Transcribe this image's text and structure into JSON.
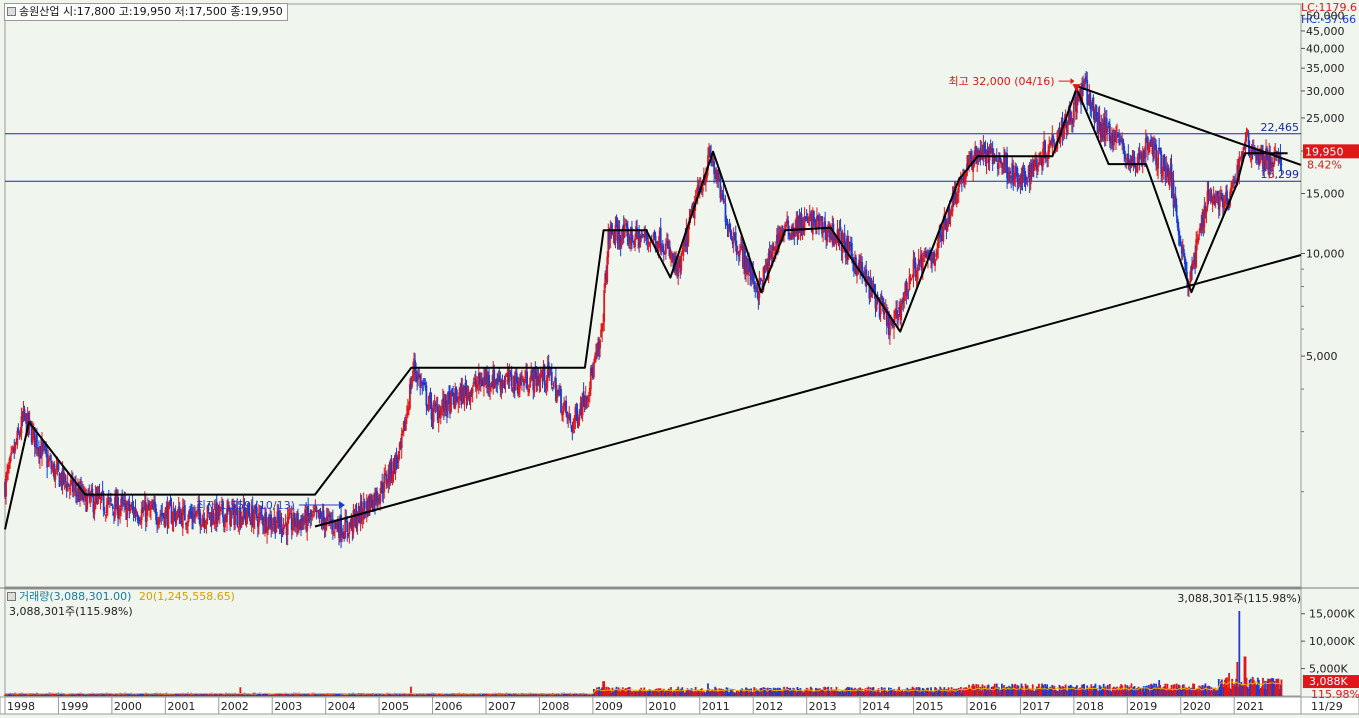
{
  "header": {
    "name": "송원산업",
    "text": "송원산업 시:17,800 고:19,950 저:17,500 종:19,950"
  },
  "lc_label": "LC:1179.6",
  "hc_label": "HC:-37.66",
  "colors": {
    "background": "#f0f6ee",
    "up": "#e0161a",
    "down": "#1a3cd0",
    "trendline": "#000000",
    "hline": "#1a2a9a",
    "ma20": "#e8b400",
    "current_tag": "#e0161a"
  },
  "chart_data": [
    {
      "type": "candlestick",
      "y_scale": "log",
      "ylim": [
        1050,
        54000
      ],
      "y_ticks": [
        5000,
        10000,
        15000,
        20000,
        25000,
        30000,
        35000,
        40000,
        45000,
        50000
      ],
      "y_tick_labels": [
        "5,000",
        "10,000",
        "15,000",
        "20,000",
        "25,000",
        "30,000",
        "35,000",
        "40,000",
        "45,000",
        "50,000"
      ],
      "x_start": 1998.0,
      "x_end": 2022.25,
      "x_ticks": [
        1998,
        1999,
        2000,
        2001,
        2002,
        2003,
        2004,
        2005,
        2006,
        2007,
        2008,
        2009,
        2010,
        2011,
        2012,
        2013,
        2014,
        2015,
        2016,
        2017,
        2018,
        2019,
        2020,
        2021
      ],
      "x_tick_labels": [
        "1998",
        "1999",
        "2000",
        "2001",
        "2002",
        "2003",
        "2004",
        "2005",
        "2006",
        "2007",
        "2008",
        "2009",
        "2010",
        "2011",
        "2012",
        "2013",
        "2014",
        "2015",
        "2016",
        "2017",
        "2018",
        "2019",
        "2020",
        "2021"
      ],
      "last_tick_label": "11/29",
      "price_path": [
        [
          1998.0,
          2100
        ],
        [
          1998.35,
          3300
        ],
        [
          1998.9,
          2300
        ],
        [
          1999.5,
          1900
        ],
        [
          2000.5,
          1750
        ],
        [
          2001.5,
          1700
        ],
        [
          2002.5,
          1720
        ],
        [
          2003.3,
          1600
        ],
        [
          2003.8,
          1680
        ],
        [
          2004.4,
          1560
        ],
        [
          2005.0,
          2000
        ],
        [
          2005.4,
          2600
        ],
        [
          2005.65,
          4700
        ],
        [
          2006.0,
          3400
        ],
        [
          2006.6,
          3900
        ],
        [
          2007.0,
          4300
        ],
        [
          2007.6,
          4200
        ],
        [
          2008.2,
          4400
        ],
        [
          2008.6,
          3100
        ],
        [
          2008.9,
          4000
        ],
        [
          2009.15,
          5500
        ],
        [
          2009.3,
          11500
        ],
        [
          2009.7,
          11200
        ],
        [
          2010.3,
          11000
        ],
        [
          2010.6,
          8700
        ],
        [
          2010.85,
          13000
        ],
        [
          2011.2,
          19500
        ],
        [
          2011.55,
          12000
        ],
        [
          2012.1,
          7800
        ],
        [
          2012.5,
          11500
        ],
        [
          2013.1,
          12500
        ],
        [
          2013.6,
          11200
        ],
        [
          2014.0,
          9000
        ],
        [
          2014.6,
          6000
        ],
        [
          2015.0,
          9000
        ],
        [
          2015.4,
          10000
        ],
        [
          2015.8,
          15500
        ],
        [
          2016.2,
          20000
        ],
        [
          2016.7,
          18500
        ],
        [
          2017.0,
          16000
        ],
        [
          2017.5,
          20500
        ],
        [
          2018.0,
          26500
        ],
        [
          2018.2,
          31000
        ],
        [
          2018.45,
          24000
        ],
        [
          2018.8,
          22000
        ],
        [
          2019.1,
          18000
        ],
        [
          2019.4,
          21000
        ],
        [
          2019.8,
          17000
        ],
        [
          2020.15,
          8000
        ],
        [
          2020.5,
          15000
        ],
        [
          2020.9,
          14000
        ],
        [
          2021.2,
          21500
        ],
        [
          2021.5,
          19000
        ],
        [
          2021.9,
          18500
        ]
      ],
      "trendlines": [
        {
          "name": "wave",
          "points": [
            [
              1998.0,
              1550
            ],
            [
              1998.45,
              3200
            ],
            [
              1999.5,
              1960
            ],
            [
              2003.8,
              1960
            ],
            [
              2005.6,
              4620
            ],
            [
              2008.85,
              4620
            ],
            [
              2009.2,
              11700
            ],
            [
              2010.0,
              11700
            ],
            [
              2010.45,
              8500
            ],
            [
              2011.25,
              19900
            ],
            [
              2012.15,
              7700
            ],
            [
              2012.6,
              11700
            ],
            [
              2013.45,
              11900
            ],
            [
              2014.75,
              5900
            ],
            [
              2015.85,
              16500
            ],
            [
              2016.2,
              19300
            ],
            [
              2017.6,
              19300
            ],
            [
              2018.05,
              30500
            ],
            [
              2018.65,
              18300
            ],
            [
              2019.35,
              18300
            ],
            [
              2020.2,
              7700
            ],
            [
              2021.05,
              16000
            ],
            [
              2021.2,
              19700
            ],
            [
              2022.0,
              19700
            ]
          ]
        },
        {
          "name": "support",
          "points": [
            [
              2003.8,
              1580
            ],
            [
              2022.25,
              9900
            ]
          ]
        },
        {
          "name": "resistance",
          "points": [
            [
              2018.05,
              31000
            ],
            [
              2022.25,
              18200
            ]
          ]
        }
      ],
      "hlines": [
        {
          "value": 22465,
          "label": "22,465"
        },
        {
          "value": 16299,
          "label": "16,299"
        }
      ],
      "current_price": {
        "value": 19950,
        "label": "19,950",
        "pct": "8.42%"
      },
      "annotations": {
        "high": {
          "label": "최고 32,000 (04/16)",
          "x": 2018.05,
          "value": 31000
        },
        "low": {
          "label": "최저 1,559 (10/13)",
          "x": 2003.5,
          "value": 1559
        }
      }
    },
    {
      "type": "bar",
      "title": "거래량(3,088,301.00)",
      "ma_label": "20(1,245,558.65)",
      "subtitle": "3,088,301주(115.98%)",
      "right_label": "3,088,301주(115.98%)",
      "ylim": [
        0,
        17500
      ],
      "y_ticks": [
        5000,
        10000,
        15000
      ],
      "y_tick_labels": [
        "5,000K",
        "10,000K",
        "15,000K"
      ],
      "current_tag": "3,088K",
      "current_pct": "115.98%",
      "spikes": [
        [
          2002.4,
          1600
        ],
        [
          2005.6,
          1700
        ],
        [
          2009.2,
          2700
        ],
        [
          2011.15,
          2300
        ],
        [
          2012.4,
          1300
        ],
        [
          2013.5,
          1200
        ],
        [
          2016.1,
          1900
        ],
        [
          2018.15,
          2100
        ],
        [
          2019.6,
          2900
        ],
        [
          2020.3,
          1300
        ],
        [
          2020.9,
          4200
        ],
        [
          2021.05,
          6200
        ],
        [
          2021.1,
          15500
        ],
        [
          2021.2,
          7200
        ],
        [
          2021.35,
          3500
        ],
        [
          2021.9,
          3088
        ]
      ]
    }
  ]
}
